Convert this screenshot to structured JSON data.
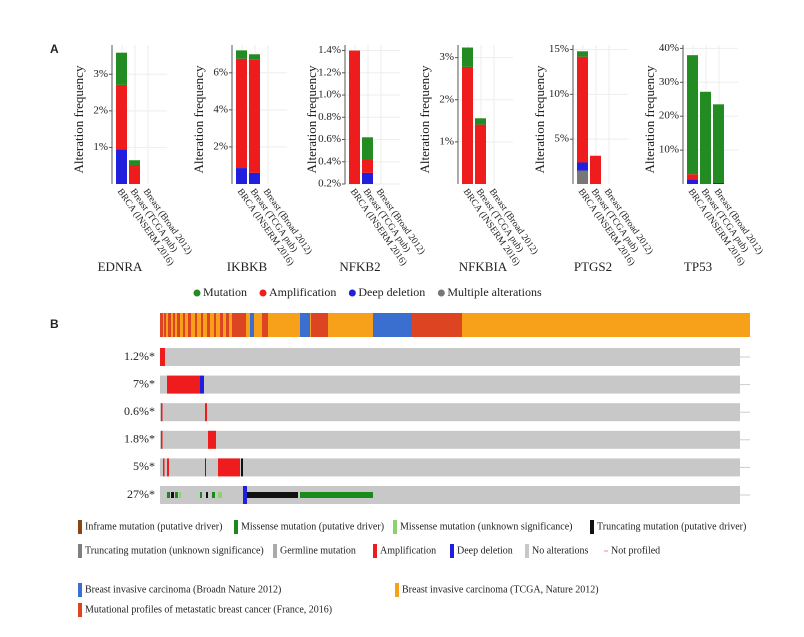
{
  "panel_labels": [
    "A",
    "B"
  ],
  "legend_a": [
    {
      "name": "Mutation",
      "color": "#228b22"
    },
    {
      "name": "Amplification",
      "color": "#ee1c1c"
    },
    {
      "name": "Deep deletion",
      "color": "#1f1fdd"
    },
    {
      "name": "Multiple alterations",
      "color": "#777777"
    }
  ],
  "chart_data": [
    {
      "type": "bar",
      "stacked": true,
      "title": "EDNRA",
      "y_label": "Alteration frequency",
      "categories": [
        "BRCA (INSERM 2016)",
        "Breast (TCGA pub)",
        "Breast (Broad 2012)"
      ],
      "series": [
        [
          0.88,
          0.13,
          0
        ],
        [
          1.76,
          0.52,
          0
        ],
        [
          0.95,
          0,
          0
        ],
        [
          0,
          0,
          0
        ]
      ],
      "ylim": [
        0,
        3.8
      ],
      "yticks": [
        {
          "value": 1,
          "label": "1%"
        },
        {
          "value": 2,
          "label": "2%"
        },
        {
          "value": 3,
          "label": "3%"
        }
      ],
      "grid": true
    },
    {
      "type": "bar",
      "stacked": true,
      "title": "IKBKB",
      "y_label": "Alteration frequency",
      "categories": [
        "BRCA (INSERM 2016)",
        "Breast (TCGA pub)",
        "Breast (Broad 2012)"
      ],
      "series": [
        [
          0.45,
          0.3,
          0
        ],
        [
          5.9,
          6.1,
          0
        ],
        [
          0.86,
          0.6,
          0
        ],
        [
          0,
          0,
          0
        ]
      ],
      "ylim": [
        0,
        7.5
      ],
      "yticks": [
        {
          "value": 2,
          "label": "2%"
        },
        {
          "value": 4,
          "label": "4%"
        },
        {
          "value": 6,
          "label": "6%"
        }
      ],
      "grid": true
    },
    {
      "type": "bar",
      "stacked": true,
      "title": "NFKB2",
      "y_label": "Alteration frequency",
      "categories": [
        "BRCA (INSERM 2016)",
        "Breast (TCGA pub)",
        "Breast (Broad 2012)"
      ],
      "series": [
        [
          0,
          0.2,
          0
        ],
        [
          1.4,
          0.12,
          0
        ],
        [
          0,
          0.3,
          0
        ],
        [
          0,
          0,
          0
        ]
      ],
      "ylim": [
        0.2,
        1.45
      ],
      "yticks": [
        {
          "value": 0.2,
          "label": "0.2%"
        },
        {
          "value": 0.4,
          "label": "0.4%"
        },
        {
          "value": 0.6,
          "label": "0.6%"
        },
        {
          "value": 0.8,
          "label": "0.8%"
        },
        {
          "value": 1.0,
          "label": "1.0%"
        },
        {
          "value": 1.2,
          "label": "1.2%"
        },
        {
          "value": 1.4,
          "label": "1.4%"
        }
      ],
      "grid": true
    },
    {
      "type": "bar",
      "stacked": true,
      "title": "NFKBIA",
      "y_label": "Alteration frequency",
      "categories": [
        "BRCA (INSERM 2016)",
        "Breast (TCGA pub)",
        "Breast (Broad 2012)"
      ],
      "series": [
        [
          0.46,
          0.15,
          0
        ],
        [
          2.78,
          1.41,
          0
        ],
        [
          0,
          0,
          0
        ],
        [
          0,
          0,
          0
        ]
      ],
      "ylim": [
        0,
        3.3
      ],
      "yticks": [
        {
          "value": 1,
          "label": "1%"
        },
        {
          "value": 2,
          "label": "2%"
        },
        {
          "value": 3,
          "label": "3%"
        }
      ],
      "grid": true
    },
    {
      "type": "bar",
      "stacked": true,
      "title": "PTGS2",
      "y_label": "Alteration frequency",
      "categories": [
        "BRCA (INSERM 2016)",
        "Breast (TCGA pub)",
        "Breast (Broad 2012)"
      ],
      "series": [
        [
          0.6,
          0,
          0
        ],
        [
          11.8,
          3.15,
          0
        ],
        [
          0.9,
          0,
          0
        ],
        [
          1.5,
          0,
          0
        ]
      ],
      "ylim": [
        0,
        15.5
      ],
      "yticks": [
        {
          "value": 5,
          "label": "5%"
        },
        {
          "value": 10,
          "label": "10%"
        },
        {
          "value": 15,
          "label": "15%"
        }
      ],
      "grid": true
    },
    {
      "type": "bar",
      "stacked": true,
      "title": "TP53",
      "y_label": "Alteration frequency",
      "categories": [
        "BRCA (INSERM 2016)",
        "Breast (TCGA pub)",
        "Breast (Broad 2012)"
      ],
      "series": [
        [
          35.1,
          27.2,
          23.2
        ],
        [
          1.5,
          0,
          0
        ],
        [
          1.4,
          0,
          0.3
        ],
        [
          0,
          0,
          0
        ]
      ],
      "ylim": [
        0,
        41
      ],
      "yticks": [
        {
          "value": 10,
          "label": "10%"
        },
        {
          "value": 20,
          "label": "20%"
        },
        {
          "value": 30,
          "label": "30%"
        },
        {
          "value": 40,
          "label": "40%"
        }
      ],
      "grid": true
    }
  ],
  "oncoprint": {
    "rows": [
      "1.2%*",
      "7%*",
      "0.6%*",
      "1.8%*",
      "5%*",
      "27%*"
    ],
    "legend": [
      {
        "name": "Inframe mutation (putative driver)",
        "color": "#8b4513"
      },
      {
        "name": "Missense mutation (putative driver)",
        "color": "#1a8a1a"
      },
      {
        "name": "Missense mutation (unknown significance)",
        "color": "#8fd16f"
      },
      {
        "name": "Truncating mutation (putative driver)",
        "color": "#111111"
      },
      {
        "name": "Truncating mutation (unknown significance)",
        "color": "#7f7f7f"
      },
      {
        "name": "Germline mutation",
        "color": "#dddddd"
      },
      {
        "name": "Amplification",
        "color": "#ee1c1c"
      },
      {
        "name": "Deep deletion",
        "color": "#1f1fdd"
      },
      {
        "name": "No alterations",
        "color": "#c8c8c8"
      },
      {
        "name": "Not profiled",
        "color": "#ffffff"
      }
    ],
    "studies": [
      {
        "name": "Breast invasive carcinoma (Broadn Nature 2012)",
        "color": "#3a6fd0"
      },
      {
        "name": "Breast invasive carcinoma (TCGA, Nature 2012)",
        "color": "#f7a11a"
      },
      {
        "name": "Mutational profiles of metastatic breast cancer (France, 2016)",
        "color": "#dd4422"
      }
    ]
  }
}
